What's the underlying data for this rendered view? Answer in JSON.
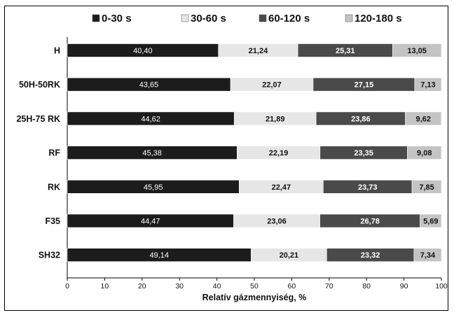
{
  "chart_data": {
    "type": "bar",
    "stacked": true,
    "orientation": "horizontal",
    "categories": [
      "H",
      "50H-50RK",
      "25H-75 RK",
      "RF",
      "RK",
      "F35",
      "SH32"
    ],
    "series": [
      {
        "name": "0-30 s",
        "color": "#1c1c1c",
        "label_color": "#ffffff",
        "label_bold": false,
        "values": [
          40.4,
          43.65,
          44.62,
          45.38,
          45.95,
          44.47,
          49.14
        ],
        "labels": [
          "40,40",
          "43,65",
          "44,62",
          "45,38",
          "45,95",
          "44,47",
          "49,14"
        ]
      },
      {
        "name": "30-60 s",
        "color": "#e6e6e6",
        "label_color": "#111111",
        "label_bold": true,
        "values": [
          21.24,
          22.07,
          21.89,
          22.19,
          22.47,
          23.06,
          20.21
        ],
        "labels": [
          "21,24",
          "22,07",
          "21,89",
          "22,19",
          "22,47",
          "23,06",
          "20,21"
        ]
      },
      {
        "name": "60-120 s",
        "color": "#4a4a4a",
        "label_color": "#ffffff",
        "label_bold": true,
        "values": [
          25.31,
          27.15,
          23.86,
          23.35,
          23.73,
          26.78,
          23.32
        ],
        "labels": [
          "25,31",
          "27,15",
          "23,86",
          "23,35",
          "23,73",
          "26,78",
          "23,32"
        ]
      },
      {
        "name": "120-180 s",
        "color": "#c4c4c4",
        "label_color": "#111111",
        "label_bold": true,
        "values": [
          13.05,
          7.13,
          9.62,
          9.08,
          7.85,
          5.69,
          7.34
        ],
        "labels": [
          "13,05",
          "7,13",
          "9,62",
          "9,08",
          "7,85",
          "5,69",
          "7,34"
        ]
      }
    ],
    "xlabel": "Relatív gázmennyiség, %",
    "ylabel": "",
    "xlim": [
      0,
      100
    ],
    "xticks": [
      "0",
      "10",
      "20",
      "30",
      "40",
      "50",
      "60",
      "70",
      "80",
      "90",
      "100"
    ],
    "legend_position": "top",
    "grid": false
  }
}
